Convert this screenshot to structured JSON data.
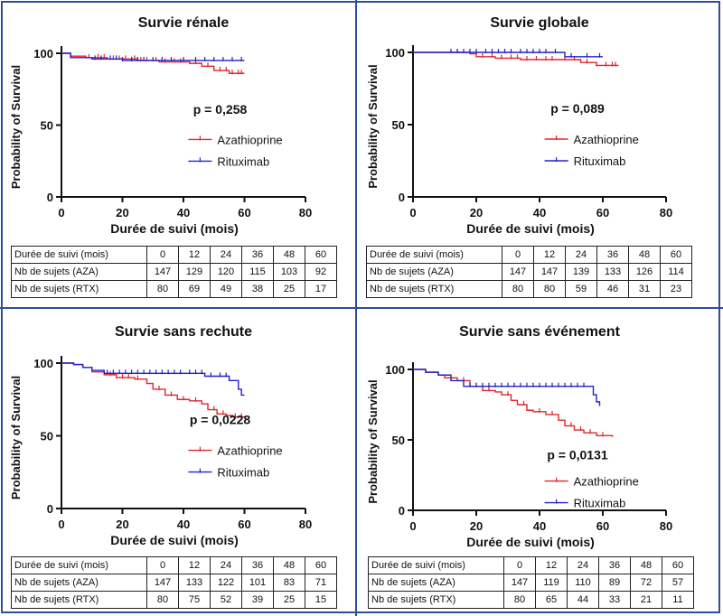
{
  "chart_data": [
    {
      "type": "line",
      "title": "Survie rénale",
      "xlabel": "Durée de suivi (mois)",
      "ylabel": "Probability of Survival",
      "xlim": [
        0,
        80
      ],
      "ylim": [
        0,
        100
      ],
      "xticks": [
        0,
        20,
        40,
        60,
        80
      ],
      "yticks": [
        0,
        50,
        100
      ],
      "p_value": "p = 0,258",
      "legend_position": "right",
      "series": [
        {
          "name": "Azathioprine",
          "color": "#e0262c",
          "x": [
            0,
            3,
            8,
            15,
            25,
            32,
            42,
            46,
            50,
            55,
            60
          ],
          "y": [
            100,
            98,
            97,
            96,
            95,
            94,
            93,
            91,
            88,
            86,
            86
          ],
          "censor_x": [
            9,
            12,
            14,
            17,
            19,
            21,
            24,
            26,
            28,
            31,
            34,
            37,
            39,
            44,
            48,
            52,
            54,
            56,
            58,
            59
          ]
        },
        {
          "name": "Rituximab",
          "color": "#2222cc",
          "x": [
            0,
            3,
            10,
            20,
            60
          ],
          "y": [
            100,
            97,
            96,
            95,
            95
          ],
          "censor_x": [
            11,
            13,
            16,
            18,
            20,
            23,
            25,
            27,
            30,
            33,
            36,
            40,
            44,
            47,
            50,
            53,
            56,
            59
          ]
        }
      ],
      "risk_table": {
        "headers": [
          "Durée de suivi (mois)",
          "0",
          "12",
          "24",
          "36",
          "48",
          "60"
        ],
        "rows": [
          [
            "Nb de sujets (AZA)",
            "147",
            "129",
            "120",
            "115",
            "103",
            "92"
          ],
          [
            "Nb de sujets (RTX)",
            "80",
            "69",
            "49",
            "38",
            "25",
            "17"
          ]
        ]
      }
    },
    {
      "type": "line",
      "title": "Survie globale",
      "xlabel": "Durée de suivi (mois)",
      "ylabel": "Probability of Survival",
      "xlim": [
        0,
        80
      ],
      "ylim": [
        0,
        100
      ],
      "xticks": [
        0,
        20,
        40,
        60,
        80
      ],
      "yticks": [
        0,
        50,
        100
      ],
      "p_value": "p = 0,089",
      "legend_position": "right",
      "series": [
        {
          "name": "Azathioprine",
          "color": "#e0262c",
          "x": [
            0,
            18,
            20,
            26,
            34,
            46,
            53,
            58,
            65
          ],
          "y": [
            100,
            99,
            97,
            96,
            95,
            95,
            93,
            91,
            91
          ],
          "censor_x": [
            14,
            22,
            25,
            28,
            31,
            33,
            36,
            39,
            42,
            44,
            48,
            51,
            55,
            58,
            61,
            63,
            64
          ]
        },
        {
          "name": "Rituximab",
          "color": "#2222cc",
          "x": [
            0,
            48,
            60
          ],
          "y": [
            100,
            97,
            97
          ],
          "censor_x": [
            12,
            14,
            16,
            18,
            20,
            23,
            25,
            27,
            29,
            31,
            34,
            36,
            38,
            40,
            42,
            45,
            50,
            55,
            59
          ]
        }
      ],
      "risk_table": {
        "headers": [
          "Durée de suivi (mois)",
          "0",
          "12",
          "24",
          "36",
          "48",
          "60"
        ],
        "rows": [
          [
            "Nb de sujets (AZA)",
            "147",
            "147",
            "139",
            "133",
            "126",
            "114"
          ],
          [
            "Nb de sujets (RTX)",
            "80",
            "80",
            "59",
            "46",
            "31",
            "23"
          ]
        ]
      }
    },
    {
      "type": "line",
      "title": "Survie sans rechute",
      "xlabel": "Durée de suivi (mois)",
      "ylabel": "Probability of Survival",
      "xlim": [
        0,
        80
      ],
      "ylim": [
        0,
        100
      ],
      "xticks": [
        0,
        20,
        40,
        60,
        80
      ],
      "yticks": [
        0,
        50,
        100
      ],
      "p_value": "p = 0,0228",
      "legend_position": "right",
      "series": [
        {
          "name": "Azathioprine",
          "color": "#e0262c",
          "x": [
            0,
            4,
            7,
            10,
            14,
            18,
            24,
            28,
            30,
            34,
            38,
            42,
            46,
            48,
            51,
            54,
            56,
            60
          ],
          "y": [
            100,
            99,
            97,
            94,
            92,
            90,
            89,
            86,
            82,
            78,
            75,
            74,
            72,
            68,
            65,
            64,
            63,
            63
          ],
          "censor_x": [
            16,
            20,
            22,
            25,
            32,
            36,
            40,
            44,
            50,
            53,
            57,
            59
          ]
        },
        {
          "name": "Rituximab",
          "color": "#2222cc",
          "x": [
            0,
            4,
            7,
            10,
            14,
            40,
            47,
            55,
            58,
            59,
            60
          ],
          "y": [
            100,
            99,
            97,
            95,
            93,
            93,
            91,
            88,
            82,
            78,
            78
          ],
          "censor_x": [
            15,
            17,
            19,
            21,
            23,
            25,
            27,
            29,
            31,
            33,
            35,
            37,
            39,
            42,
            44,
            46,
            49,
            52,
            54
          ]
        }
      ],
      "risk_table": {
        "headers": [
          "Durée de suivi (mois)",
          "0",
          "12",
          "24",
          "36",
          "48",
          "60"
        ],
        "rows": [
          [
            "Nb de sujets (AZA)",
            "147",
            "133",
            "122",
            "101",
            "83",
            "71"
          ],
          [
            "Nb de sujets (RTX)",
            "80",
            "75",
            "52",
            "39",
            "25",
            "15"
          ]
        ]
      }
    },
    {
      "type": "line",
      "title": "Survie sans événement",
      "xlabel": "Durée de suivi (mois)",
      "ylabel": "Probability of Survival",
      "xlim": [
        0,
        80
      ],
      "ylim": [
        0,
        100
      ],
      "xticks": [
        0,
        20,
        40,
        60,
        80
      ],
      "yticks": [
        0,
        50,
        100
      ],
      "p_value": "p = 0,0131",
      "legend_position": "right",
      "series": [
        {
          "name": "Azathioprine",
          "color": "#e0262c",
          "x": [
            0,
            4,
            8,
            10,
            14,
            18,
            22,
            26,
            28,
            31,
            33,
            36,
            38,
            42,
            46,
            48,
            51,
            54,
            58,
            63
          ],
          "y": [
            100,
            98,
            96,
            94,
            92,
            88,
            85,
            84,
            82,
            78,
            75,
            71,
            70,
            68,
            64,
            60,
            57,
            55,
            53,
            52
          ],
          "censor_x": [
            16,
            20,
            24,
            30,
            35,
            40,
            44,
            50,
            53,
            56,
            60
          ]
        },
        {
          "name": "Rituximab",
          "color": "#2222cc",
          "x": [
            0,
            4,
            8,
            12,
            16,
            55,
            57,
            58,
            59
          ],
          "y": [
            100,
            98,
            96,
            92,
            88,
            88,
            82,
            77,
            74
          ],
          "censor_x": [
            18,
            20,
            22,
            24,
            26,
            28,
            30,
            32,
            34,
            36,
            38,
            40,
            42,
            44,
            46,
            48,
            50,
            52,
            54
          ]
        }
      ],
      "risk_table": {
        "headers": [
          "Durée de suivi (mois)",
          "0",
          "12",
          "24",
          "36",
          "48",
          "60"
        ],
        "rows": [
          [
            "Nb de sujets (AZA)",
            "147",
            "119",
            "110",
            "89",
            "72",
            "57"
          ],
          [
            "Nb de sujets (RTX)",
            "80",
            "65",
            "44",
            "33",
            "21",
            "11"
          ]
        ]
      }
    }
  ]
}
